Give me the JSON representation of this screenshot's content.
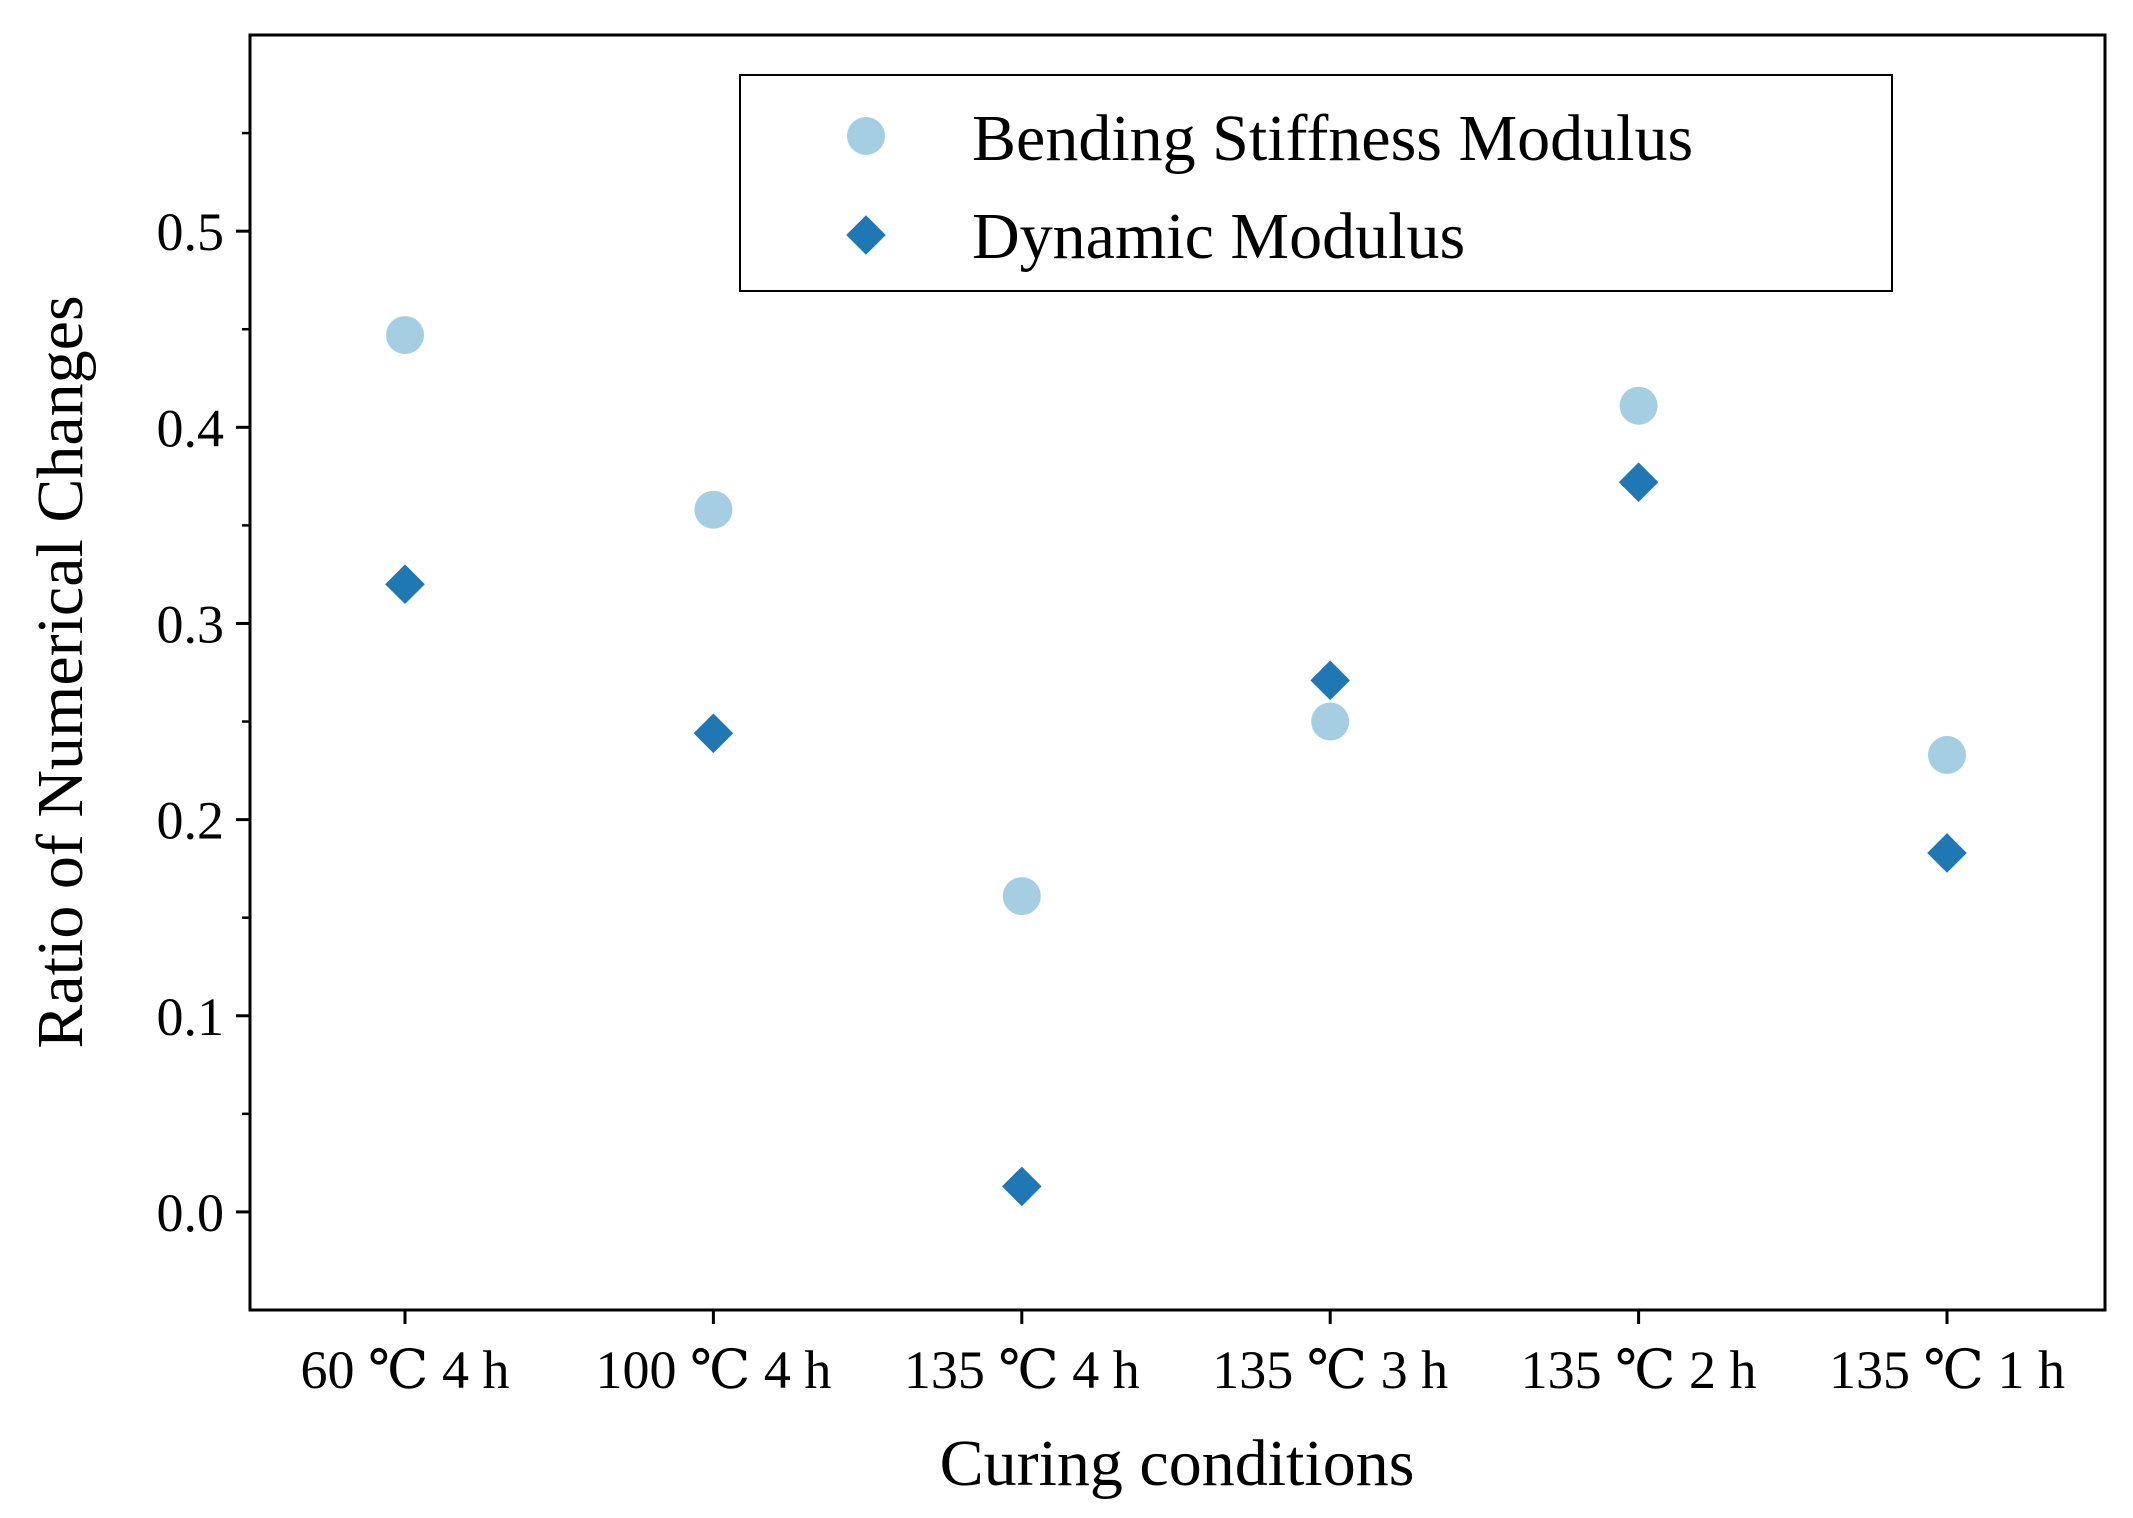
{
  "chart_data": {
    "type": "scatter",
    "title": "",
    "xlabel": "Curing conditions",
    "ylabel": "Ratio of Numerical Changes",
    "categories": [
      "60 ℃ 4 h",
      "100 ℃ 4 h",
      "135 ℃ 4 h",
      "135 ℃ 3 h",
      "135 ℃ 2 h",
      "135 ℃ 1 h"
    ],
    "ylim": [
      -0.05,
      0.6
    ],
    "yticks": [
      0.0,
      0.1,
      0.2,
      0.3,
      0.4,
      0.5
    ],
    "ytick_labels": [
      "0.0",
      "0.1",
      "0.2",
      "0.3",
      "0.4",
      "0.5"
    ],
    "grid": false,
    "legend": "top-center",
    "series": [
      {
        "name": "Bending Stiffness Modulus",
        "marker": "circle",
        "color": "#a6cee3",
        "values": [
          0.447,
          0.358,
          0.161,
          0.25,
          0.411,
          0.233
        ]
      },
      {
        "name": "Dynamic Modulus",
        "marker": "diamond",
        "color": "#1f78b4",
        "values": [
          0.32,
          0.244,
          0.013,
          0.271,
          0.372,
          0.183
        ]
      }
    ]
  }
}
